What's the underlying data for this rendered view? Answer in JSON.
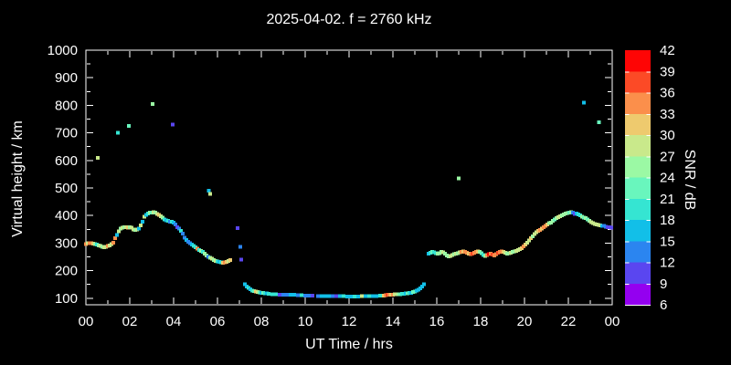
{
  "colors": {
    "background": "#000000",
    "foreground": "#ffffff"
  },
  "chart_data": {
    "type": "scatter",
    "title": "2025-04-02. f = 2760 kHz",
    "xlabel": "UT Time / hrs",
    "ylabel": "Virtual height / km",
    "colorbar_label": "SNR / dB",
    "x_ticks": [
      "00",
      "02",
      "04",
      "06",
      "08",
      "10",
      "12",
      "14",
      "16",
      "18",
      "20",
      "22",
      "00"
    ],
    "x_range_hours": [
      0,
      24
    ],
    "y_ticks": [
      100,
      200,
      300,
      400,
      500,
      600,
      700,
      800,
      900,
      1000
    ],
    "y_range": [
      100,
      1000
    ],
    "snr_ticks": [
      42,
      39,
      36,
      33,
      30,
      27,
      24,
      21,
      18,
      15,
      12,
      9,
      6
    ],
    "snr_range": [
      6,
      42
    ],
    "grid": false,
    "legend_position": "right-colorbar",
    "palette": [
      "#9400f0",
      "#5a46f0",
      "#2b85f0",
      "#12bfe8",
      "#35e5d2",
      "#69f6bd",
      "#9bf9a4",
      "#c9e98b",
      "#eeca6e",
      "#fb8f4b",
      "#fc4a26",
      "#fe0505"
    ],
    "point_format": [
      "ut_hour",
      "virtual_height_km",
      "snr_db"
    ],
    "points": [
      [
        0.0,
        297,
        34.5
      ],
      [
        0.08,
        299,
        28.5
      ],
      [
        0.17,
        300,
        34.5
      ],
      [
        0.25,
        300,
        34.5
      ],
      [
        0.33,
        298,
        31.5
      ],
      [
        0.42,
        297,
        25.5
      ],
      [
        0.5,
        295,
        19.5
      ],
      [
        0.58,
        292,
        25.5
      ],
      [
        0.67,
        290,
        28.5
      ],
      [
        0.75,
        287,
        25.5
      ],
      [
        0.83,
        285,
        28.5
      ],
      [
        0.92,
        286,
        28.5
      ],
      [
        1.0,
        289,
        34.5
      ],
      [
        1.08,
        292,
        28.5
      ],
      [
        1.17,
        296,
        28.5
      ],
      [
        1.25,
        301,
        34.5
      ],
      [
        1.33,
        318,
        34.5
      ],
      [
        1.42,
        330,
        16
      ],
      [
        1.5,
        342,
        28.5
      ],
      [
        1.58,
        352,
        25.5
      ],
      [
        1.67,
        356,
        28.5
      ],
      [
        1.75,
        358,
        25.5
      ],
      [
        1.83,
        357,
        28.5
      ],
      [
        1.92,
        356,
        31.5
      ],
      [
        2.0,
        357,
        25.5
      ],
      [
        2.08,
        356,
        28.5
      ],
      [
        2.17,
        350,
        28.5
      ],
      [
        2.25,
        348,
        25.5
      ],
      [
        2.33,
        350,
        28.5
      ],
      [
        2.42,
        353,
        16
      ],
      [
        2.5,
        365,
        28.5
      ],
      [
        2.58,
        378,
        16
      ],
      [
        2.67,
        395,
        28.5
      ],
      [
        2.75,
        403,
        16
      ],
      [
        2.83,
        408,
        19.5
      ],
      [
        2.92,
        410,
        25.5
      ],
      [
        3.0,
        411,
        22
      ],
      [
        3.08,
        412,
        28.5
      ],
      [
        3.17,
        410,
        25.5
      ],
      [
        3.25,
        405,
        28.5
      ],
      [
        3.33,
        402,
        31.5
      ],
      [
        3.42,
        398,
        28.5
      ],
      [
        3.5,
        392,
        25.5
      ],
      [
        3.58,
        385,
        19.5
      ],
      [
        3.67,
        382,
        16
      ],
      [
        3.75,
        380,
        19.5
      ],
      [
        3.83,
        378,
        13
      ],
      [
        3.92,
        377,
        19.5
      ],
      [
        4.0,
        375,
        16
      ],
      [
        4.08,
        368,
        13
      ],
      [
        4.17,
        358,
        10
      ],
      [
        4.25,
        352,
        13
      ],
      [
        4.33,
        345,
        19.5
      ],
      [
        4.42,
        335,
        13
      ],
      [
        4.5,
        320,
        13
      ],
      [
        4.58,
        312,
        16
      ],
      [
        4.67,
        305,
        13
      ],
      [
        4.75,
        300,
        13
      ],
      [
        4.83,
        295,
        16
      ],
      [
        4.92,
        290,
        19.5
      ],
      [
        5.0,
        285,
        19.5
      ],
      [
        5.08,
        280,
        34.5
      ],
      [
        5.17,
        275,
        19.5
      ],
      [
        5.25,
        272,
        25.5
      ],
      [
        5.33,
        268,
        19.5
      ],
      [
        5.42,
        262,
        25.5
      ],
      [
        5.5,
        255,
        25.5
      ],
      [
        5.58,
        250,
        13
      ],
      [
        5.67,
        247,
        25.5
      ],
      [
        5.75,
        243,
        28.5
      ],
      [
        5.83,
        238,
        25.5
      ],
      [
        5.92,
        235,
        28.5
      ],
      [
        6.0,
        233,
        19.5
      ],
      [
        6.08,
        232,
        16
      ],
      [
        6.17,
        230,
        19.5
      ],
      [
        6.25,
        229,
        31.5
      ],
      [
        6.33,
        230,
        34.5
      ],
      [
        6.42,
        232,
        31.5
      ],
      [
        6.5,
        235,
        28.5
      ],
      [
        6.58,
        238,
        31.5
      ],
      [
        6.92,
        355,
        10
      ],
      [
        7.04,
        287,
        13
      ],
      [
        7.08,
        240,
        10
      ],
      [
        0.55,
        610,
        28.5
      ],
      [
        1.45,
        700,
        19.5
      ],
      [
        1.95,
        725,
        22
      ],
      [
        3.05,
        805,
        25.5
      ],
      [
        3.95,
        730,
        10
      ],
      [
        5.6,
        490,
        16
      ],
      [
        5.67,
        478,
        28.5
      ],
      [
        17.0,
        535,
        25.5
      ],
      [
        22.7,
        810,
        16
      ],
      [
        23.4,
        738,
        22
      ],
      [
        7.25,
        150,
        16
      ],
      [
        7.33,
        143,
        16
      ],
      [
        7.42,
        137,
        19.5
      ],
      [
        7.5,
        132,
        16
      ],
      [
        7.58,
        128,
        19.5
      ],
      [
        7.67,
        126,
        22
      ],
      [
        7.75,
        125,
        31.5
      ],
      [
        7.83,
        123,
        28.5
      ],
      [
        7.92,
        121,
        22
      ],
      [
        8.0,
        120,
        16
      ],
      [
        8.08,
        119,
        22
      ],
      [
        8.17,
        118,
        19.5
      ],
      [
        8.25,
        117,
        16
      ],
      [
        8.33,
        116,
        19.5
      ],
      [
        8.5,
        115,
        19.5
      ],
      [
        8.67,
        114,
        19.5
      ],
      [
        8.83,
        113,
        10
      ],
      [
        9.0,
        113,
        13
      ],
      [
        9.17,
        112,
        13
      ],
      [
        9.33,
        112,
        16
      ],
      [
        9.5,
        112,
        16
      ],
      [
        9.67,
        111,
        13
      ],
      [
        9.83,
        111,
        19.5
      ],
      [
        10.0,
        110,
        13
      ],
      [
        10.17,
        110,
        13
      ],
      [
        10.33,
        109,
        10
      ],
      [
        10.58,
        108,
        13
      ],
      [
        10.75,
        108,
        16
      ],
      [
        10.92,
        108,
        16
      ],
      [
        11.08,
        107,
        16
      ],
      [
        11.25,
        107,
        13
      ],
      [
        11.42,
        107,
        10
      ],
      [
        11.58,
        107,
        16
      ],
      [
        11.75,
        107,
        19.5
      ],
      [
        11.92,
        106,
        16
      ],
      [
        12.08,
        106,
        16
      ],
      [
        12.25,
        106,
        19.5
      ],
      [
        12.42,
        106,
        16
      ],
      [
        12.58,
        107,
        28.5
      ],
      [
        12.75,
        107,
        16
      ],
      [
        12.92,
        107,
        19.5
      ],
      [
        13.08,
        108,
        16
      ],
      [
        13.25,
        108,
        16
      ],
      [
        13.42,
        109,
        19.5
      ],
      [
        13.58,
        110,
        31.5
      ],
      [
        13.67,
        111,
        34.5
      ],
      [
        13.75,
        112,
        37.5
      ],
      [
        13.83,
        112,
        34.5
      ],
      [
        13.92,
        113,
        31.5
      ],
      [
        14.0,
        113,
        34.5
      ],
      [
        14.08,
        114,
        28.5
      ],
      [
        14.17,
        114,
        28.5
      ],
      [
        14.25,
        115,
        25.5
      ],
      [
        14.33,
        115,
        22
      ],
      [
        14.42,
        116,
        19.5
      ],
      [
        14.5,
        116,
        19.5
      ],
      [
        14.58,
        117,
        16
      ],
      [
        14.67,
        118,
        22
      ],
      [
        14.75,
        119,
        19.5
      ],
      [
        14.83,
        120,
        16
      ],
      [
        14.92,
        122,
        22
      ],
      [
        15.0,
        124,
        22
      ],
      [
        15.08,
        127,
        16
      ],
      [
        15.17,
        131,
        16
      ],
      [
        15.25,
        136,
        16
      ],
      [
        15.33,
        143,
        16
      ],
      [
        15.42,
        150,
        16
      ],
      [
        15.62,
        262,
        16
      ],
      [
        15.71,
        265,
        19.5
      ],
      [
        15.79,
        268,
        22
      ],
      [
        15.88,
        266,
        19.5
      ],
      [
        15.96,
        263,
        19.5
      ],
      [
        16.04,
        262,
        25.5
      ],
      [
        16.13,
        264,
        25.5
      ],
      [
        16.21,
        268,
        25.5
      ],
      [
        16.29,
        266,
        28.5
      ],
      [
        16.38,
        262,
        25.5
      ],
      [
        16.46,
        255,
        25.5
      ],
      [
        16.54,
        251,
        25.5
      ],
      [
        16.63,
        253,
        28.5
      ],
      [
        16.71,
        257,
        28.5
      ],
      [
        16.79,
        260,
        25.5
      ],
      [
        16.88,
        262,
        28.5
      ],
      [
        16.96,
        264,
        25.5
      ],
      [
        17.04,
        266,
        28.5
      ],
      [
        17.13,
        268,
        34.5
      ],
      [
        17.21,
        270,
        31.5
      ],
      [
        17.29,
        268,
        34.5
      ],
      [
        17.38,
        265,
        34.5
      ],
      [
        17.46,
        262,
        31.5
      ],
      [
        17.54,
        260,
        34.5
      ],
      [
        17.63,
        262,
        37.5
      ],
      [
        17.71,
        265,
        34.5
      ],
      [
        17.79,
        268,
        34.5
      ],
      [
        17.88,
        270,
        31.5
      ],
      [
        17.96,
        268,
        25.5
      ],
      [
        18.04,
        263,
        22
      ],
      [
        18.13,
        257,
        19.5
      ],
      [
        18.21,
        254,
        25.5
      ],
      [
        18.29,
        257,
        34.5
      ],
      [
        18.38,
        260,
        40.5
      ],
      [
        18.46,
        262,
        34.5
      ],
      [
        18.54,
        258,
        37.5
      ],
      [
        18.63,
        255,
        34.5
      ],
      [
        18.71,
        260,
        34.5
      ],
      [
        18.79,
        265,
        37.5
      ],
      [
        18.88,
        268,
        34.5
      ],
      [
        18.96,
        270,
        34.5
      ],
      [
        19.04,
        268,
        31.5
      ],
      [
        19.13,
        265,
        28.5
      ],
      [
        19.21,
        262,
        25.5
      ],
      [
        19.29,
        263,
        25.5
      ],
      [
        19.38,
        265,
        28.5
      ],
      [
        19.46,
        268,
        25.5
      ],
      [
        19.54,
        270,
        25.5
      ],
      [
        19.63,
        272,
        28.5
      ],
      [
        19.71,
        275,
        28.5
      ],
      [
        19.79,
        278,
        28.5
      ],
      [
        19.88,
        282,
        31.5
      ],
      [
        19.96,
        288,
        34.5
      ],
      [
        20.04,
        295,
        31.5
      ],
      [
        20.13,
        302,
        28.5
      ],
      [
        20.21,
        310,
        28.5
      ],
      [
        20.29,
        318,
        31.5
      ],
      [
        20.38,
        325,
        25.5
      ],
      [
        20.46,
        332,
        28.5
      ],
      [
        20.54,
        340,
        28.5
      ],
      [
        20.63,
        345,
        31.5
      ],
      [
        20.71,
        348,
        34.5
      ],
      [
        20.79,
        352,
        31.5
      ],
      [
        20.88,
        358,
        34.5
      ],
      [
        20.96,
        363,
        34.5
      ],
      [
        21.04,
        368,
        31.5
      ],
      [
        21.13,
        372,
        25.5
      ],
      [
        21.21,
        375,
        25.5
      ],
      [
        21.29,
        380,
        25.5
      ],
      [
        21.38,
        385,
        22
      ],
      [
        21.46,
        390,
        25.5
      ],
      [
        21.54,
        394,
        28.5
      ],
      [
        21.63,
        398,
        28.5
      ],
      [
        21.71,
        401,
        25.5
      ],
      [
        21.79,
        404,
        25.5
      ],
      [
        21.88,
        407,
        25.5
      ],
      [
        21.96,
        409,
        25.5
      ],
      [
        22.04,
        411,
        22
      ],
      [
        22.13,
        412,
        25.5
      ],
      [
        22.21,
        410,
        13
      ],
      [
        22.29,
        406,
        10
      ],
      [
        22.38,
        408,
        16
      ],
      [
        22.46,
        404,
        19.5
      ],
      [
        22.54,
        400,
        19.5
      ],
      [
        22.63,
        396,
        25.5
      ],
      [
        22.71,
        393,
        22
      ],
      [
        22.79,
        390,
        25.5
      ],
      [
        22.88,
        385,
        22
      ],
      [
        22.96,
        380,
        25.5
      ],
      [
        23.04,
        376,
        28.5
      ],
      [
        23.13,
        372,
        28.5
      ],
      [
        23.21,
        370,
        28.5
      ],
      [
        23.29,
        368,
        28.5
      ],
      [
        23.38,
        366,
        28.5
      ],
      [
        23.46,
        365,
        28.5
      ],
      [
        23.54,
        363,
        16
      ],
      [
        23.63,
        362,
        13
      ],
      [
        23.71,
        360,
        13
      ],
      [
        23.79,
        358,
        10
      ],
      [
        23.88,
        357,
        10
      ],
      [
        23.96,
        356,
        10
      ]
    ]
  }
}
